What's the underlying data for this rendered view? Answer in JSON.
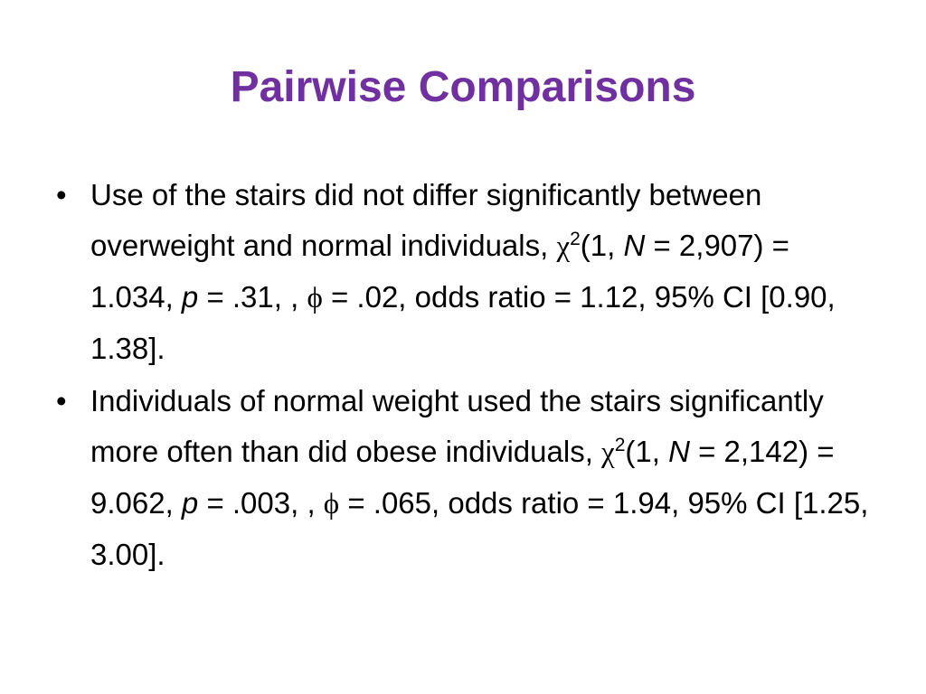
{
  "title": "Pairwise Comparisons",
  "bullets": [
    {
      "runs": [
        {
          "text": "Use of the stairs did not differ significantly between overweight and normal individuals, "
        },
        {
          "text": "χ",
          "style": "symbol"
        },
        {
          "text": "2",
          "style": "superscript"
        },
        {
          "text": "(1, "
        },
        {
          "text": "N",
          "style": "italic"
        },
        {
          "text": " = 2,907) = 1.034, "
        },
        {
          "text": "p",
          "style": "italic"
        },
        {
          "text": " = .31, , "
        },
        {
          "text": "ϕ",
          "style": "symbol"
        },
        {
          "text": " = .02, odds ratio = 1.12, 95% CI [0.90, 1.38]."
        }
      ]
    },
    {
      "runs": [
        {
          "text": "Individuals of normal weight used the stairs significantly more often than did obese individuals, "
        },
        {
          "text": "χ",
          "style": "symbol"
        },
        {
          "text": "2",
          "style": "superscript"
        },
        {
          "text": "(1, "
        },
        {
          "text": "N",
          "style": "italic"
        },
        {
          "text": " = 2,142) = 9.062, "
        },
        {
          "text": "p",
          "style": "italic"
        },
        {
          "text": " = .003, , "
        },
        {
          "text": "ϕ",
          "style": "symbol"
        },
        {
          "text": " = .065, odds ratio = 1.94, 95% CI [1.25, 3.00]."
        }
      ]
    }
  ]
}
